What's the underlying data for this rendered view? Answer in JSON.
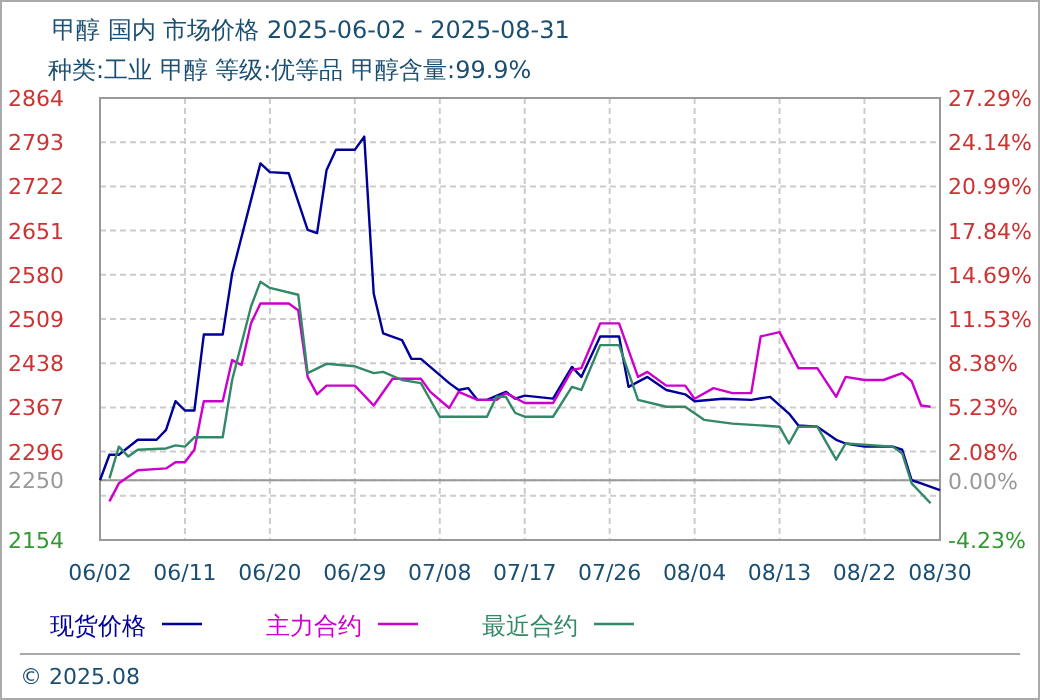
{
  "chart_data": {
    "type": "line",
    "title": "甲醇 国内 市场价格 2025-06-02 - 2025-08-31",
    "subtitle": "种类:工业 甲醇 等级:优等品 甲醇含量:99.9%",
    "xlim": [
      "2025-06-02",
      "2025-08-30"
    ],
    "xticks": [
      {
        "value": "2025-06-02",
        "label": "06/02"
      },
      {
        "value": "2025-06-11",
        "label": "06/11"
      },
      {
        "value": "2025-06-20",
        "label": "06/20"
      },
      {
        "value": "2025-06-29",
        "label": "06/29"
      },
      {
        "value": "2025-07-08",
        "label": "07/08"
      },
      {
        "value": "2025-07-17",
        "label": "07/17"
      },
      {
        "value": "2025-07-26",
        "label": "07/26"
      },
      {
        "value": "2025-08-04",
        "label": "08/04"
      },
      {
        "value": "2025-08-13",
        "label": "08/13"
      },
      {
        "value": "2025-08-22",
        "label": "08/22"
      },
      {
        "value": "2025-08-30",
        "label": "08/30"
      }
    ],
    "ylim": [
      2154,
      2864
    ],
    "yticks": [
      2864,
      2793,
      2722,
      2651,
      2580,
      2509,
      2438,
      2367,
      2296,
      2250,
      {
        "value": 2225,
        "label": null
      },
      2154
    ],
    "y2lim": [
      -4.23,
      27.29
    ],
    "y2ticks": [
      {
        "value": 27.29,
        "label": "27.29%"
      },
      {
        "value": 24.14,
        "label": "24.14%"
      },
      {
        "value": 20.99,
        "label": "20.99%"
      },
      {
        "value": 17.84,
        "label": "17.84%"
      },
      {
        "value": 14.69,
        "label": "14.69%"
      },
      {
        "value": 11.53,
        "label": "11.53%"
      },
      {
        "value": 8.38,
        "label": "8.38%"
      },
      {
        "value": 5.23,
        "label": "5.23%"
      },
      {
        "value": 2.08,
        "label": "2.08%"
      },
      {
        "value": 0,
        "label": "0.00%"
      },
      {
        "value": -4.23,
        "label": "-4.23%"
      }
    ],
    "grid": true,
    "legend": "bottom",
    "line_style": "solid",
    "ref_lines": [
      {
        "axis": "y",
        "value": 2250,
        "color": "#999999"
      }
    ],
    "annotations": [
      "© 2025.08"
    ],
    "series": [
      {
        "name": "现货价格",
        "color": "#000099",
        "x": [
          "2025-06-02",
          "2025-06-03",
          "2025-06-04",
          "2025-06-06",
          "2025-06-08",
          "2025-06-09",
          "2025-06-10",
          "2025-06-11",
          "2025-06-12",
          "2025-06-13",
          "2025-06-15",
          "2025-06-16",
          "2025-06-19",
          "2025-06-20",
          "2025-06-22",
          "2025-06-24",
          "2025-06-25",
          "2025-06-26",
          "2025-06-27",
          "2025-06-29",
          "2025-06-30",
          "2025-07-01",
          "2025-07-02",
          "2025-07-04",
          "2025-07-05",
          "2025-07-06",
          "2025-07-09",
          "2025-07-10",
          "2025-07-11",
          "2025-07-12",
          "2025-07-13",
          "2025-07-15",
          "2025-07-16",
          "2025-07-17",
          "2025-07-20",
          "2025-07-22",
          "2025-07-23",
          "2025-07-25",
          "2025-07-27",
          "2025-07-28",
          "2025-07-30",
          "2025-08-01",
          "2025-08-03",
          "2025-08-04",
          "2025-08-07",
          "2025-08-10",
          "2025-08-12",
          "2025-08-14",
          "2025-08-15",
          "2025-08-17",
          "2025-08-19",
          "2025-08-20",
          "2025-08-22",
          "2025-08-25",
          "2025-08-26",
          "2025-08-27",
          "2025-08-28",
          "2025-08-30"
        ],
        "values": [
          2250,
          2291,
          2291,
          2315,
          2315,
          2331,
          2377,
          2362,
          2362,
          2484,
          2484,
          2582,
          2759,
          2745,
          2743,
          2652,
          2647,
          2748,
          2781,
          2781,
          2802,
          2550,
          2486,
          2475,
          2445,
          2445,
          2406,
          2395,
          2398,
          2379,
          2379,
          2392,
          2381,
          2386,
          2381,
          2432,
          2416,
          2481,
          2481,
          2400,
          2416,
          2395,
          2388,
          2377,
          2381,
          2379,
          2384,
          2357,
          2338,
          2336,
          2315,
          2309,
          2304,
          2304,
          2299,
          2250,
          2245,
          2234
        ]
      },
      {
        "name": "主力合约",
        "color": "#cc00cc",
        "x": [
          "2025-06-03",
          "2025-06-04",
          "2025-06-06",
          "2025-06-09",
          "2025-06-10",
          "2025-06-11",
          "2025-06-12",
          "2025-06-13",
          "2025-06-15",
          "2025-06-16",
          "2025-06-17",
          "2025-06-18",
          "2025-06-19",
          "2025-06-22",
          "2025-06-23",
          "2025-06-24",
          "2025-06-25",
          "2025-06-26",
          "2025-06-29",
          "2025-07-01",
          "2025-07-03",
          "2025-07-06",
          "2025-07-07",
          "2025-07-09",
          "2025-07-10",
          "2025-07-12",
          "2025-07-14",
          "2025-07-15",
          "2025-07-17",
          "2025-07-20",
          "2025-07-22",
          "2025-07-23",
          "2025-07-25",
          "2025-07-27",
          "2025-07-29",
          "2025-07-30",
          "2025-08-01",
          "2025-08-03",
          "2025-08-04",
          "2025-08-06",
          "2025-08-08",
          "2025-08-10",
          "2025-08-11",
          "2025-08-13",
          "2025-08-15",
          "2025-08-17",
          "2025-08-19",
          "2025-08-20",
          "2025-08-22",
          "2025-08-24",
          "2025-08-26",
          "2025-08-27",
          "2025-08-28",
          "2025-08-29"
        ],
        "values": [
          2216,
          2245,
          2266,
          2269,
          2279,
          2279,
          2299,
          2377,
          2377,
          2443,
          2435,
          2502,
          2534,
          2534,
          2523,
          2416,
          2388,
          2402,
          2402,
          2370,
          2413,
          2413,
          2392,
          2366,
          2392,
          2379,
          2379,
          2390,
          2374,
          2374,
          2427,
          2430,
          2502,
          2502,
          2416,
          2424,
          2402,
          2402,
          2381,
          2398,
          2390,
          2390,
          2481,
          2488,
          2430,
          2430,
          2384,
          2416,
          2411,
          2411,
          2422,
          2409,
          2370,
          2368
        ]
      },
      {
        "name": "最近合约",
        "color": "#338866",
        "x": [
          "2025-06-03",
          "2025-06-04",
          "2025-06-05",
          "2025-06-06",
          "2025-06-09",
          "2025-06-10",
          "2025-06-11",
          "2025-06-12",
          "2025-06-15",
          "2025-06-16",
          "2025-06-18",
          "2025-06-19",
          "2025-06-20",
          "2025-06-23",
          "2025-06-24",
          "2025-06-26",
          "2025-06-29",
          "2025-07-01",
          "2025-07-02",
          "2025-07-04",
          "2025-07-06",
          "2025-07-08",
          "2025-07-13",
          "2025-07-14",
          "2025-07-15",
          "2025-07-16",
          "2025-07-17",
          "2025-07-20",
          "2025-07-22",
          "2025-07-23",
          "2025-07-25",
          "2025-07-27",
          "2025-07-29",
          "2025-08-01",
          "2025-08-03",
          "2025-08-05",
          "2025-08-08",
          "2025-08-13",
          "2025-08-14",
          "2025-08-15",
          "2025-08-17",
          "2025-08-19",
          "2025-08-20",
          "2025-08-25",
          "2025-08-26",
          "2025-08-27",
          "2025-08-29"
        ],
        "values": [
          2253,
          2304,
          2288,
          2299,
          2301,
          2306,
          2304,
          2319,
          2319,
          2411,
          2529,
          2569,
          2559,
          2548,
          2422,
          2437,
          2433,
          2422,
          2424,
          2411,
          2406,
          2352,
          2352,
          2384,
          2384,
          2358,
          2352,
          2352,
          2400,
          2395,
          2467,
          2467,
          2379,
          2368,
          2368,
          2347,
          2341,
          2336,
          2309,
          2336,
          2336,
          2283,
          2309,
          2304,
          2293,
          2245,
          2213
        ]
      }
    ]
  }
}
